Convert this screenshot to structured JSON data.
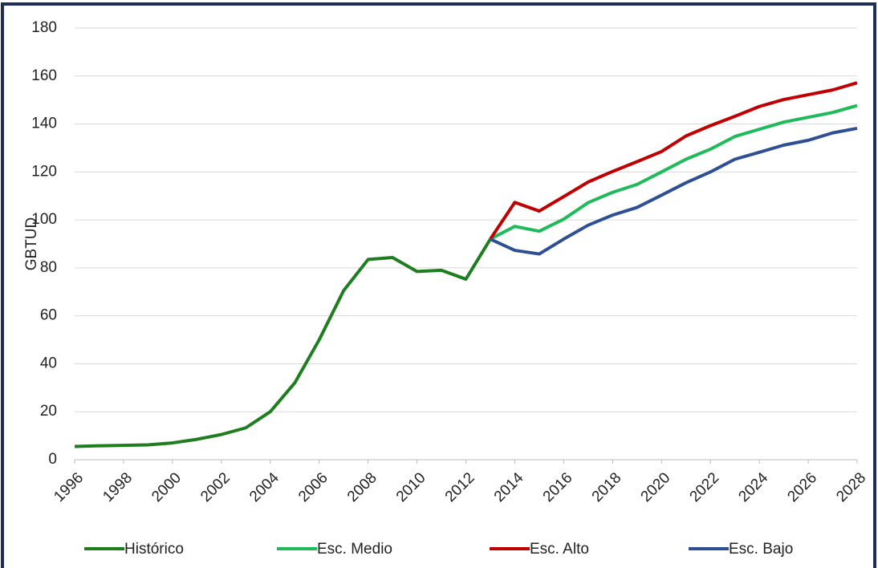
{
  "chart_data": {
    "type": "line",
    "y_label": "GBTUD",
    "x": [
      1996,
      1997,
      1998,
      1999,
      2000,
      2001,
      2002,
      2003,
      2004,
      2005,
      2006,
      2007,
      2008,
      2009,
      2010,
      2011,
      2012,
      2013,
      2014,
      2015,
      2016,
      2017,
      2018,
      2019,
      2020,
      2021,
      2022,
      2023,
      2024,
      2025,
      2026,
      2027,
      2028
    ],
    "series": [
      {
        "name": "Histórico",
        "color": "#1e7d1e",
        "values": [
          5.5,
          5.8,
          6,
          6.2,
          7,
          8.5,
          10.5,
          13.3,
          20,
          32,
          50,
          70.5,
          83.5,
          84.3,
          78.5,
          79,
          75.3,
          92,
          null,
          null,
          null,
          null,
          null,
          null,
          null,
          null,
          null,
          null,
          null,
          null,
          null,
          null,
          null
        ]
      },
      {
        "name": "Esc. Medio",
        "color": "#1fba5a",
        "values": [
          null,
          null,
          null,
          null,
          null,
          null,
          null,
          null,
          null,
          null,
          null,
          null,
          null,
          null,
          null,
          null,
          null,
          92,
          97.3,
          95.3,
          100.3,
          107.2,
          111.5,
          114.8,
          120,
          125.3,
          129.5,
          134.8,
          137.8,
          140.8,
          142.8,
          144.8,
          147.7
        ]
      },
      {
        "name": "Esc. Alto",
        "color": "#c00000",
        "values": [
          null,
          null,
          null,
          null,
          null,
          null,
          null,
          null,
          null,
          null,
          null,
          null,
          null,
          null,
          null,
          null,
          null,
          92,
          107.3,
          103.7,
          109.7,
          115.8,
          120.2,
          124.3,
          128.5,
          135,
          139.3,
          143.2,
          147.3,
          150.2,
          152.2,
          154.2,
          157.2
        ]
      },
      {
        "name": "Esc. Bajo",
        "color": "#2e4f94",
        "values": [
          null,
          null,
          null,
          null,
          null,
          null,
          null,
          null,
          null,
          null,
          null,
          null,
          null,
          null,
          null,
          null,
          null,
          92,
          87.3,
          85.8,
          92,
          97.8,
          102,
          105.2,
          110.3,
          115.5,
          120,
          125.3,
          128.2,
          131.2,
          133.2,
          136.3,
          138.2
        ]
      }
    ],
    "xlim": [
      1996,
      2028
    ],
    "xticks": [
      1996,
      1998,
      2000,
      2002,
      2004,
      2006,
      2008,
      2010,
      2012,
      2014,
      2016,
      2018,
      2020,
      2022,
      2024,
      2026,
      2028
    ],
    "ylim": [
      0,
      180
    ],
    "yticks": [
      0,
      20,
      40,
      60,
      80,
      100,
      120,
      140,
      160,
      180
    ],
    "grid": true,
    "legend": "bottom"
  }
}
